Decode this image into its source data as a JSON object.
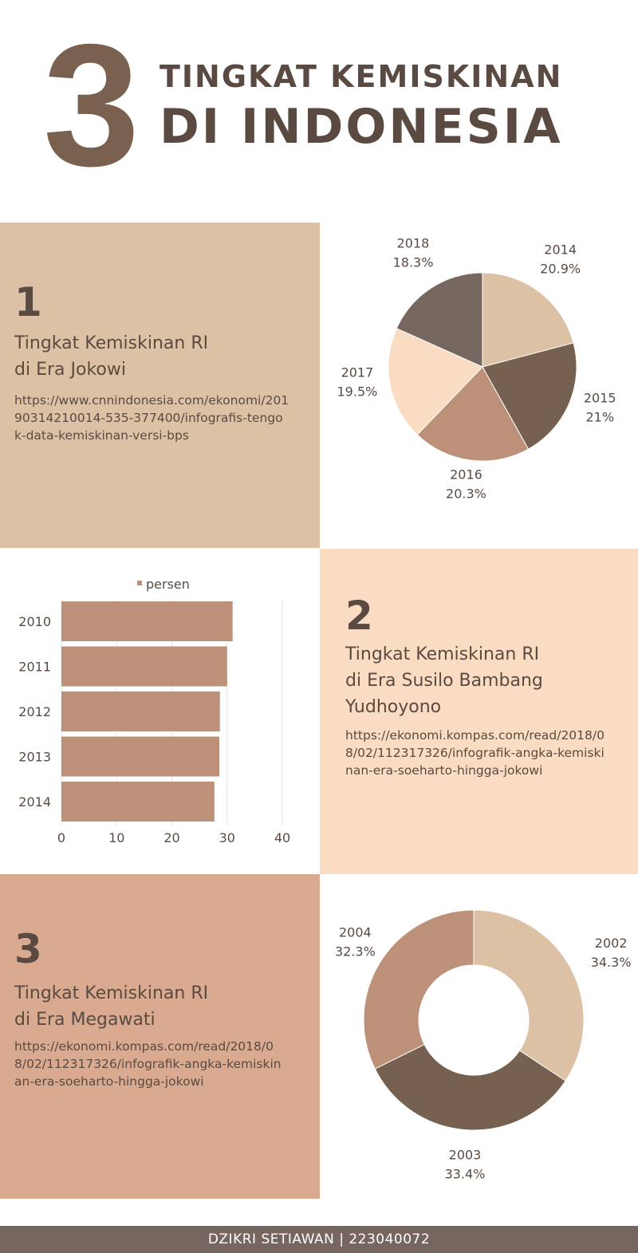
{
  "header": {
    "number": "3",
    "title_line1": "TINGKAT KEMISKINAN",
    "title_line2": "DI INDONESIA"
  },
  "section1": {
    "number": "1",
    "title": "Tingkat Kemiskinan RI\ndi Era Jokowi",
    "url": "https://www.cnnindonesia.com/ekonomi/20190314210014-535-377400/infografis-tengok-data-kemiskinan-versi-bps"
  },
  "section2": {
    "number": "2",
    "title": "Tingkat Kemiskinan RI\ndi Era Susilo Bambang\nYudhoyono",
    "url": "https://ekonomi.kompas.com/read/2018/08/02/112317326/infografik-angka-kemiskinan-era-soeharto-hingga-jokowi"
  },
  "section3": {
    "number": "3",
    "title": "Tingkat Kemiskinan RI\ndi Era Megawati",
    "url": "https://ekonomi.kompas.com/read/2018/08/02/112317326/infografik-angka-kemiskinan-era-soeharto-hingga-jokowi"
  },
  "colors": {
    "panel1_bg": "#dcc1a5",
    "panel2_bg": "#f9dcc1",
    "panel3_bg": "#d9aa8f",
    "bar": "#bd9179",
    "footer_bg": "#776560"
  },
  "chart_data": [
    {
      "type": "pie",
      "labels": [
        "2014",
        "2015",
        "2016",
        "2017",
        "2018"
      ],
      "value_labels": [
        "20.9%",
        "21%",
        "20.3%",
        "19.5%",
        "18.3%"
      ],
      "values": [
        20.9,
        21,
        20.3,
        19.5,
        18.3
      ],
      "colors": [
        "#dcc1a5",
        "#76604f",
        "#bd9179",
        "#f9dcc1",
        "#776761"
      ]
    },
    {
      "type": "bar",
      "orientation": "horizontal",
      "categories": [
        "2010",
        "2011",
        "2012",
        "2013",
        "2014"
      ],
      "series": [
        {
          "name": "persen",
          "values": [
            31,
            30,
            28.7,
            28.6,
            27.7
          ]
        }
      ],
      "xlim": [
        0,
        40
      ],
      "xticks": [
        "0",
        "10",
        "20",
        "30",
        "40"
      ],
      "legend": "top",
      "grid": true
    },
    {
      "type": "pie",
      "donut": true,
      "labels": [
        "2002",
        "2003",
        "2004"
      ],
      "value_labels": [
        "34.3%",
        "33.4%",
        "32.3%"
      ],
      "values": [
        34.3,
        33.4,
        32.3
      ],
      "colors": [
        "#dcc1a5",
        "#76604f",
        "#bd9179"
      ]
    }
  ],
  "footer": {
    "text": "DZIKRI SETIAWAN | 223040072"
  }
}
